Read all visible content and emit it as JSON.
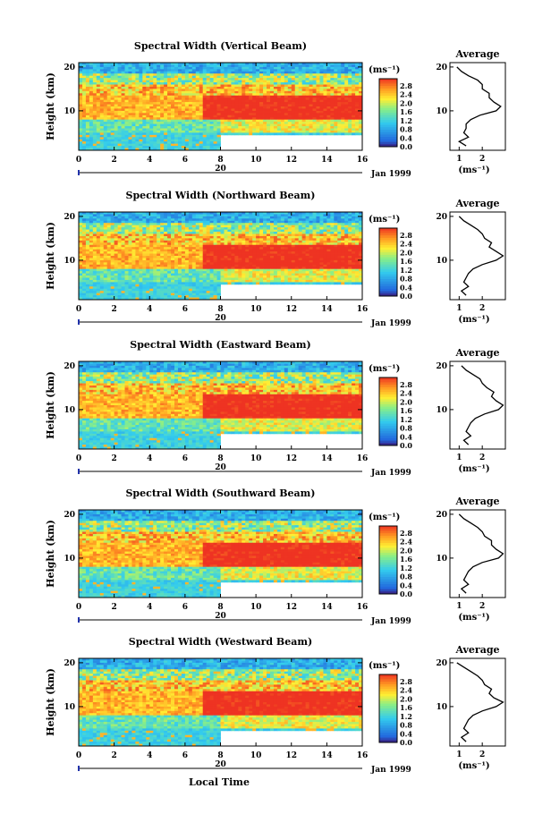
{
  "figure": {
    "x_axis_title": "Local Time",
    "y_axis_title": "Height (km)",
    "date_label": "Jan 1999",
    "day_label": "20",
    "unit_label": "(ms⁻¹)",
    "profile_title": "Average",
    "profile_unit": "(ms⁻¹)",
    "colorbar_ticks": [
      "2.8",
      "2.4",
      "2.0",
      "1.6",
      "1.2",
      "0.8",
      "0.4",
      "0.0"
    ],
    "x_ticks": [
      "0",
      "2",
      "4",
      "6",
      "8",
      "10",
      "12",
      "14",
      "16"
    ],
    "y_ticks": [
      "20",
      "10"
    ],
    "colors": {
      "low": "#3a1a7a",
      "blue": "#2266dd",
      "cyan": "#33ccee",
      "green": "#88ee88",
      "yellow": "#ffee33",
      "orange": "#ff9922",
      "red": "#ee3322"
    }
  },
  "chart_data": [
    {
      "type": "heatmap",
      "title": "Spectral Width (Vertical Beam)",
      "xlabel": "Local Time",
      "ylabel": "Height (km)",
      "xlim": [
        0,
        16
      ],
      "ylim": [
        1,
        21
      ],
      "colorbar_range": [
        0.0,
        2.8
      ],
      "missing_region": {
        "x": [
          8,
          16
        ],
        "y": [
          1,
          4.5
        ]
      },
      "profile": {
        "title": "Average",
        "x_ticks": [
          "1",
          "2"
        ],
        "heights": [
          2,
          3,
          4,
          5,
          6,
          7,
          8,
          9,
          10,
          11,
          12,
          13,
          14,
          15,
          16,
          17,
          18,
          19,
          20
        ],
        "values": [
          1.3,
          1.0,
          1.4,
          1.2,
          1.3,
          1.3,
          1.5,
          1.9,
          2.6,
          2.8,
          2.5,
          2.3,
          2.3,
          2.0,
          2.0,
          1.8,
          1.4,
          1.1,
          0.9
        ]
      }
    },
    {
      "type": "heatmap",
      "title": "Spectral Width (Northward Beam)",
      "xlabel": "Local Time",
      "ylabel": "Height (km)",
      "xlim": [
        0,
        16
      ],
      "ylim": [
        1,
        21
      ],
      "colorbar_range": [
        0.0,
        2.8
      ],
      "missing_region": {
        "x": [
          8,
          16
        ],
        "y": [
          1,
          4.5
        ]
      },
      "profile": {
        "title": "Average",
        "x_ticks": [
          "1",
          "2"
        ],
        "heights": [
          2,
          3,
          4,
          5,
          6,
          7,
          8,
          9,
          10,
          11,
          12,
          13,
          14,
          15,
          16,
          17,
          18,
          19,
          20
        ],
        "values": [
          1.3,
          1.1,
          1.4,
          1.2,
          1.3,
          1.4,
          1.6,
          2.0,
          2.6,
          2.9,
          2.6,
          2.3,
          2.4,
          2.1,
          2.0,
          1.8,
          1.5,
          1.2,
          1.0
        ]
      }
    },
    {
      "type": "heatmap",
      "title": "Spectral Width (Eastward Beam)",
      "xlabel": "Local Time",
      "ylabel": "Height (km)",
      "xlim": [
        0,
        16
      ],
      "ylim": [
        1,
        21
      ],
      "colorbar_range": [
        0.0,
        2.8
      ],
      "missing_region": {
        "x": [
          8,
          16
        ],
        "y": [
          1,
          4.5
        ]
      },
      "profile": {
        "title": "Average",
        "x_ticks": [
          "1",
          "2"
        ],
        "heights": [
          2,
          3,
          4,
          5,
          6,
          7,
          8,
          9,
          10,
          11,
          12,
          13,
          14,
          15,
          16,
          17,
          18,
          19,
          20
        ],
        "values": [
          1.4,
          1.2,
          1.5,
          1.3,
          1.4,
          1.5,
          1.7,
          2.1,
          2.7,
          2.9,
          2.6,
          2.4,
          2.5,
          2.2,
          2.0,
          1.9,
          1.6,
          1.3,
          1.1
        ]
      }
    },
    {
      "type": "heatmap",
      "title": "Spectral Width (Southward Beam)",
      "xlabel": "Local Time",
      "ylabel": "Height (km)",
      "xlim": [
        0,
        16
      ],
      "ylim": [
        1,
        21
      ],
      "colorbar_range": [
        0.0,
        2.8
      ],
      "missing_region": {
        "x": [
          8,
          16
        ],
        "y": [
          1,
          4.5
        ]
      },
      "profile": {
        "title": "Average",
        "x_ticks": [
          "1",
          "2"
        ],
        "heights": [
          2,
          3,
          4,
          5,
          6,
          7,
          8,
          9,
          10,
          11,
          12,
          13,
          14,
          15,
          16,
          17,
          18,
          19,
          20
        ],
        "values": [
          1.3,
          1.1,
          1.4,
          1.2,
          1.3,
          1.4,
          1.6,
          2.0,
          2.7,
          2.9,
          2.6,
          2.4,
          2.4,
          2.1,
          2.0,
          1.8,
          1.5,
          1.2,
          1.0
        ]
      }
    },
    {
      "type": "heatmap",
      "title": "Spectral Width (Westward Beam)",
      "xlabel": "Local Time",
      "ylabel": "Height (km)",
      "xlim": [
        0,
        16
      ],
      "ylim": [
        1,
        21
      ],
      "colorbar_range": [
        0.0,
        2.8
      ],
      "missing_region": {
        "x": [
          8,
          16
        ],
        "y": [
          1,
          4.5
        ]
      },
      "profile": {
        "title": "Average",
        "x_ticks": [
          "1",
          "2"
        ],
        "heights": [
          2,
          3,
          4,
          5,
          6,
          7,
          8,
          9,
          10,
          11,
          12,
          13,
          14,
          15,
          16,
          17,
          18,
          19,
          20
        ],
        "values": [
          1.3,
          1.1,
          1.4,
          1.2,
          1.3,
          1.4,
          1.6,
          2.0,
          2.6,
          2.9,
          2.5,
          2.3,
          2.4,
          2.1,
          2.0,
          1.8,
          1.5,
          1.2,
          0.9
        ]
      }
    }
  ]
}
